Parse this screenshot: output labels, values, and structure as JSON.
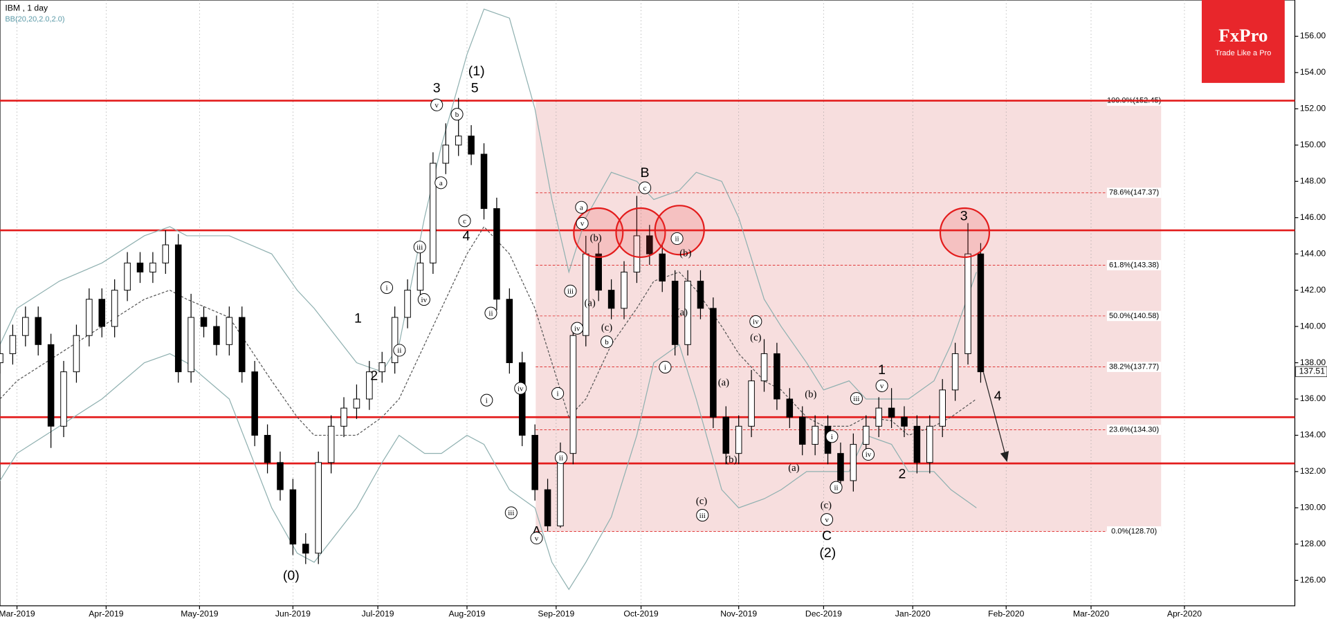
{
  "chart_data": {
    "type": "candlestick",
    "title": "IBM , 1 day",
    "subtitle": "BB(20,20,2.0,2.0)",
    "logo": {
      "brand": "FxPro",
      "tagline": "Trade Like a Pro"
    },
    "xlim": [
      -4,
      301
    ],
    "ylim": [
      124.6,
      158.0
    ],
    "xticks": [
      {
        "value": 0,
        "label": "Mar-2019"
      },
      {
        "value": 21,
        "label": "Apr-2019"
      },
      {
        "value": 43,
        "label": "May-2019"
      },
      {
        "value": 65,
        "label": "Jun-2019"
      },
      {
        "value": 85,
        "label": "Jul-2019"
      },
      {
        "value": 106,
        "label": "Aug-2019"
      },
      {
        "value": 127,
        "label": "Sep-2019"
      },
      {
        "value": 147,
        "label": "Oct-2019"
      },
      {
        "value": 170,
        "label": "Nov-2019"
      },
      {
        "value": 190,
        "label": "Dec-2019"
      },
      {
        "value": 211,
        "label": "Jan-2020"
      },
      {
        "value": 233,
        "label": "Feb-2020"
      },
      {
        "value": 253,
        "label": "Mar-2020"
      },
      {
        "value": 275,
        "label": "Apr-2020"
      }
    ],
    "yticks": [
      {
        "value": 126,
        "label": "126.00"
      },
      {
        "value": 128,
        "label": "128.00"
      },
      {
        "value": 130,
        "label": "130.00"
      },
      {
        "value": 132,
        "label": "132.00"
      },
      {
        "value": 134,
        "label": "134.00"
      },
      {
        "value": 136,
        "label": "136.00"
      },
      {
        "value": 138,
        "label": "138.00"
      },
      {
        "value": 140,
        "label": "140.00"
      },
      {
        "value": 142,
        "label": "142.00"
      },
      {
        "value": 144,
        "label": "144.00"
      },
      {
        "value": 146,
        "label": "146.00"
      },
      {
        "value": 148,
        "label": "148.00"
      },
      {
        "value": 150,
        "label": "150.00"
      },
      {
        "value": 152,
        "label": "152.00"
      },
      {
        "value": 154,
        "label": "154.00"
      },
      {
        "value": 156,
        "label": "156.00"
      }
    ],
    "last_price": 137.51,
    "x": [
      -4,
      -1,
      2,
      5,
      8,
      11,
      14,
      17,
      20,
      23,
      26,
      29,
      32,
      35,
      38,
      41,
      44,
      47,
      50,
      53,
      56,
      59,
      62,
      65,
      68,
      71,
      74,
      77,
      80,
      83,
      86,
      89,
      92,
      95,
      98,
      101,
      104,
      107,
      110,
      113,
      116,
      119,
      122,
      125,
      128,
      131,
      134,
      137,
      140,
      143,
      146,
      149,
      152,
      155,
      158,
      161,
      164,
      167,
      170,
      173,
      176,
      179,
      182,
      185,
      188,
      191,
      194,
      197,
      200,
      203,
      206,
      209,
      212,
      215,
      218,
      221,
      224,
      227
    ],
    "open": [
      138,
      138.5,
      139.5,
      140.5,
      139,
      134.5,
      137.5,
      139.5,
      141.5,
      140,
      142,
      143.5,
      143,
      143.5,
      144.5,
      137.5,
      140.5,
      140,
      139,
      140.5,
      137.5,
      134,
      132.5,
      131,
      128,
      127.5,
      132.5,
      134.5,
      135.5,
      136,
      137.5,
      138,
      140.5,
      142,
      143.5,
      149,
      150,
      150.5,
      149.5,
      146.5,
      141.5,
      138,
      134,
      131,
      129,
      133,
      139.5,
      144,
      142,
      141,
      143,
      145,
      144,
      142.5,
      139,
      142.5,
      141,
      135,
      133,
      134.5,
      137,
      138.5,
      136,
      135,
      133.5,
      134.5,
      133,
      131.5,
      133.5,
      134.5,
      135.5,
      135,
      134.5,
      132.5,
      134.5,
      136.5,
      138.5,
      144
    ],
    "high": [
      139.1,
      140.1,
      141.1,
      141.1,
      139.6,
      138.1,
      140.1,
      142.1,
      142.1,
      142.6,
      144.1,
      144.1,
      144.1,
      145.3,
      145.1,
      141.8,
      141.1,
      140.6,
      141.1,
      141.1,
      138.1,
      134.6,
      133.1,
      131.6,
      128.6,
      133.1,
      135.1,
      136.1,
      136.8,
      138.1,
      138.6,
      141.1,
      142.6,
      144.1,
      149.6,
      151.2,
      152.6,
      151.1,
      150.1,
      147.1,
      142.1,
      138.6,
      134.6,
      131.6,
      133.6,
      140.1,
      145,
      144.6,
      142.6,
      143.6,
      147.2,
      145.6,
      144.6,
      143.1,
      143.1,
      143.1,
      141.6,
      135.6,
      135.1,
      137.6,
      139.3,
      139.1,
      136.6,
      135.6,
      135.1,
      135.1,
      133.6,
      134.1,
      135.1,
      136.1,
      136.6,
      135.6,
      135.1,
      135.1,
      137.1,
      139.1,
      145.7,
      144.6
    ],
    "low": [
      137.4,
      137.9,
      138.9,
      138.4,
      133.3,
      133.9,
      136.9,
      138.9,
      139.4,
      139.4,
      141.4,
      142.4,
      142.4,
      142.9,
      136.9,
      136.9,
      139.4,
      138.4,
      138.4,
      136.9,
      133.4,
      131.9,
      130.4,
      127.4,
      126.9,
      126.9,
      131.9,
      133.9,
      134.9,
      135.4,
      136.9,
      137.4,
      139.9,
      141.4,
      142.9,
      148.4,
      149.4,
      148.9,
      145.9,
      140.9,
      137.4,
      133.4,
      130.4,
      128.7,
      128.9,
      132.4,
      138.9,
      141.4,
      140.4,
      140.4,
      142.4,
      143.4,
      141.9,
      138.4,
      138.4,
      140.4,
      134.4,
      132.4,
      132.4,
      133.9,
      136.4,
      135.4,
      134.4,
      132.9,
      132.9,
      132.4,
      130.9,
      130.9,
      132.9,
      133.9,
      134.4,
      133.9,
      131.9,
      131.9,
      133.9,
      135.9,
      137.9,
      136.9
    ],
    "close": [
      138.5,
      139.5,
      140.5,
      139,
      134.5,
      137.5,
      139.5,
      141.5,
      140,
      142,
      143.5,
      143,
      143.5,
      144.5,
      137.5,
      140.5,
      140,
      139,
      140.5,
      137.5,
      134,
      132.5,
      131,
      128,
      127.5,
      132.5,
      134.5,
      135.5,
      136,
      137.5,
      138,
      140.5,
      142,
      143.5,
      149,
      150,
      150.5,
      149.5,
      146.5,
      141.5,
      138,
      134,
      131,
      129,
      133,
      139.5,
      144,
      142,
      141,
      143,
      145,
      144,
      142.5,
      139,
      142.5,
      141,
      135,
      133,
      134.5,
      137,
      138.5,
      136,
      135,
      133.5,
      134.5,
      133,
      131.5,
      133.5,
      134.5,
      135.5,
      135,
      134.5,
      132.5,
      134.5,
      136.5,
      138.5,
      144,
      137.5
    ],
    "bb": {
      "color": "#8fb0b0",
      "middle_color": "#555555",
      "x": [
        -4,
        0,
        10,
        20,
        30,
        36,
        40,
        50,
        60,
        66,
        70,
        80,
        86,
        90,
        96,
        100,
        106,
        110,
        116,
        122,
        126,
        130,
        134,
        140,
        146,
        150,
        156,
        160,
        166,
        170,
        176,
        180,
        186,
        190,
        196,
        200,
        206,
        210,
        216,
        220,
        226
      ],
      "upper": [
        139,
        141,
        142.5,
        143.5,
        145,
        145.5,
        145,
        145,
        144,
        142,
        141,
        138,
        137.5,
        139,
        146,
        150,
        155,
        157.5,
        157,
        152,
        147,
        143,
        146,
        148.5,
        148,
        147,
        147.5,
        148.5,
        148,
        146,
        141.5,
        140,
        138,
        136.5,
        137,
        136,
        136,
        136,
        137,
        139,
        143
      ],
      "middle": [
        136,
        137,
        138.5,
        140,
        141.5,
        142,
        141.5,
        140.5,
        137,
        135,
        134,
        134,
        135,
        136,
        139,
        141,
        144,
        145.5,
        144,
        141,
        138,
        135,
        136,
        139,
        141,
        142.5,
        143,
        142,
        140,
        138.5,
        137,
        136.5,
        135,
        134.5,
        134.5,
        135,
        134.8,
        134,
        134.5,
        135,
        136
      ],
      "lower": [
        131.5,
        133,
        134.5,
        136,
        138,
        138.5,
        138,
        136,
        130,
        127.5,
        127,
        130,
        132.5,
        134,
        133,
        133,
        134,
        133.5,
        131,
        130,
        127,
        125.5,
        127,
        129.5,
        134,
        138,
        139,
        136,
        131,
        130,
        130.5,
        131,
        132,
        132,
        132,
        134,
        133.5,
        132,
        132,
        131,
        130
      ]
    },
    "levels": [
      152.45,
      145.3,
      135.0,
      132.45
    ],
    "fib_levels": [
      {
        "value": 152.45,
        "label": "100.0%(152.45)"
      },
      {
        "value": 147.37,
        "label": "78.6%(147.37)"
      },
      {
        "value": 143.38,
        "label": "61.8%(143.38)"
      },
      {
        "value": 140.58,
        "label": "50.0%(140.58)"
      },
      {
        "value": 137.77,
        "label": "38.2%(137.77)"
      },
      {
        "value": 134.3,
        "label": "23.6%(134.30)"
      },
      {
        "value": 128.7,
        "label": "0.0%(128.70)"
      }
    ],
    "annotations": [
      "3",
      "5",
      "(1)",
      "4",
      "B",
      "A",
      "C",
      "(2)",
      "(0)",
      "1",
      "2",
      "3",
      "4",
      "1",
      "2",
      "v",
      "b",
      "a",
      "c",
      "iii",
      "iv",
      "i",
      "ii",
      "ii",
      "i",
      "iv",
      "i",
      "ii",
      "iii",
      "v",
      "a",
      "v",
      "(b)",
      "iii",
      "(a)",
      "iv",
      "(c)",
      "b",
      "c",
      "ii",
      "(b)",
      "(a)",
      "i",
      "iv",
      "(c)",
      "(a)",
      "(b)",
      "(c)",
      "iii",
      "(b)",
      "(a)",
      "i",
      "ii",
      "(c)",
      "v",
      "iii",
      "iv",
      "v"
    ]
  }
}
